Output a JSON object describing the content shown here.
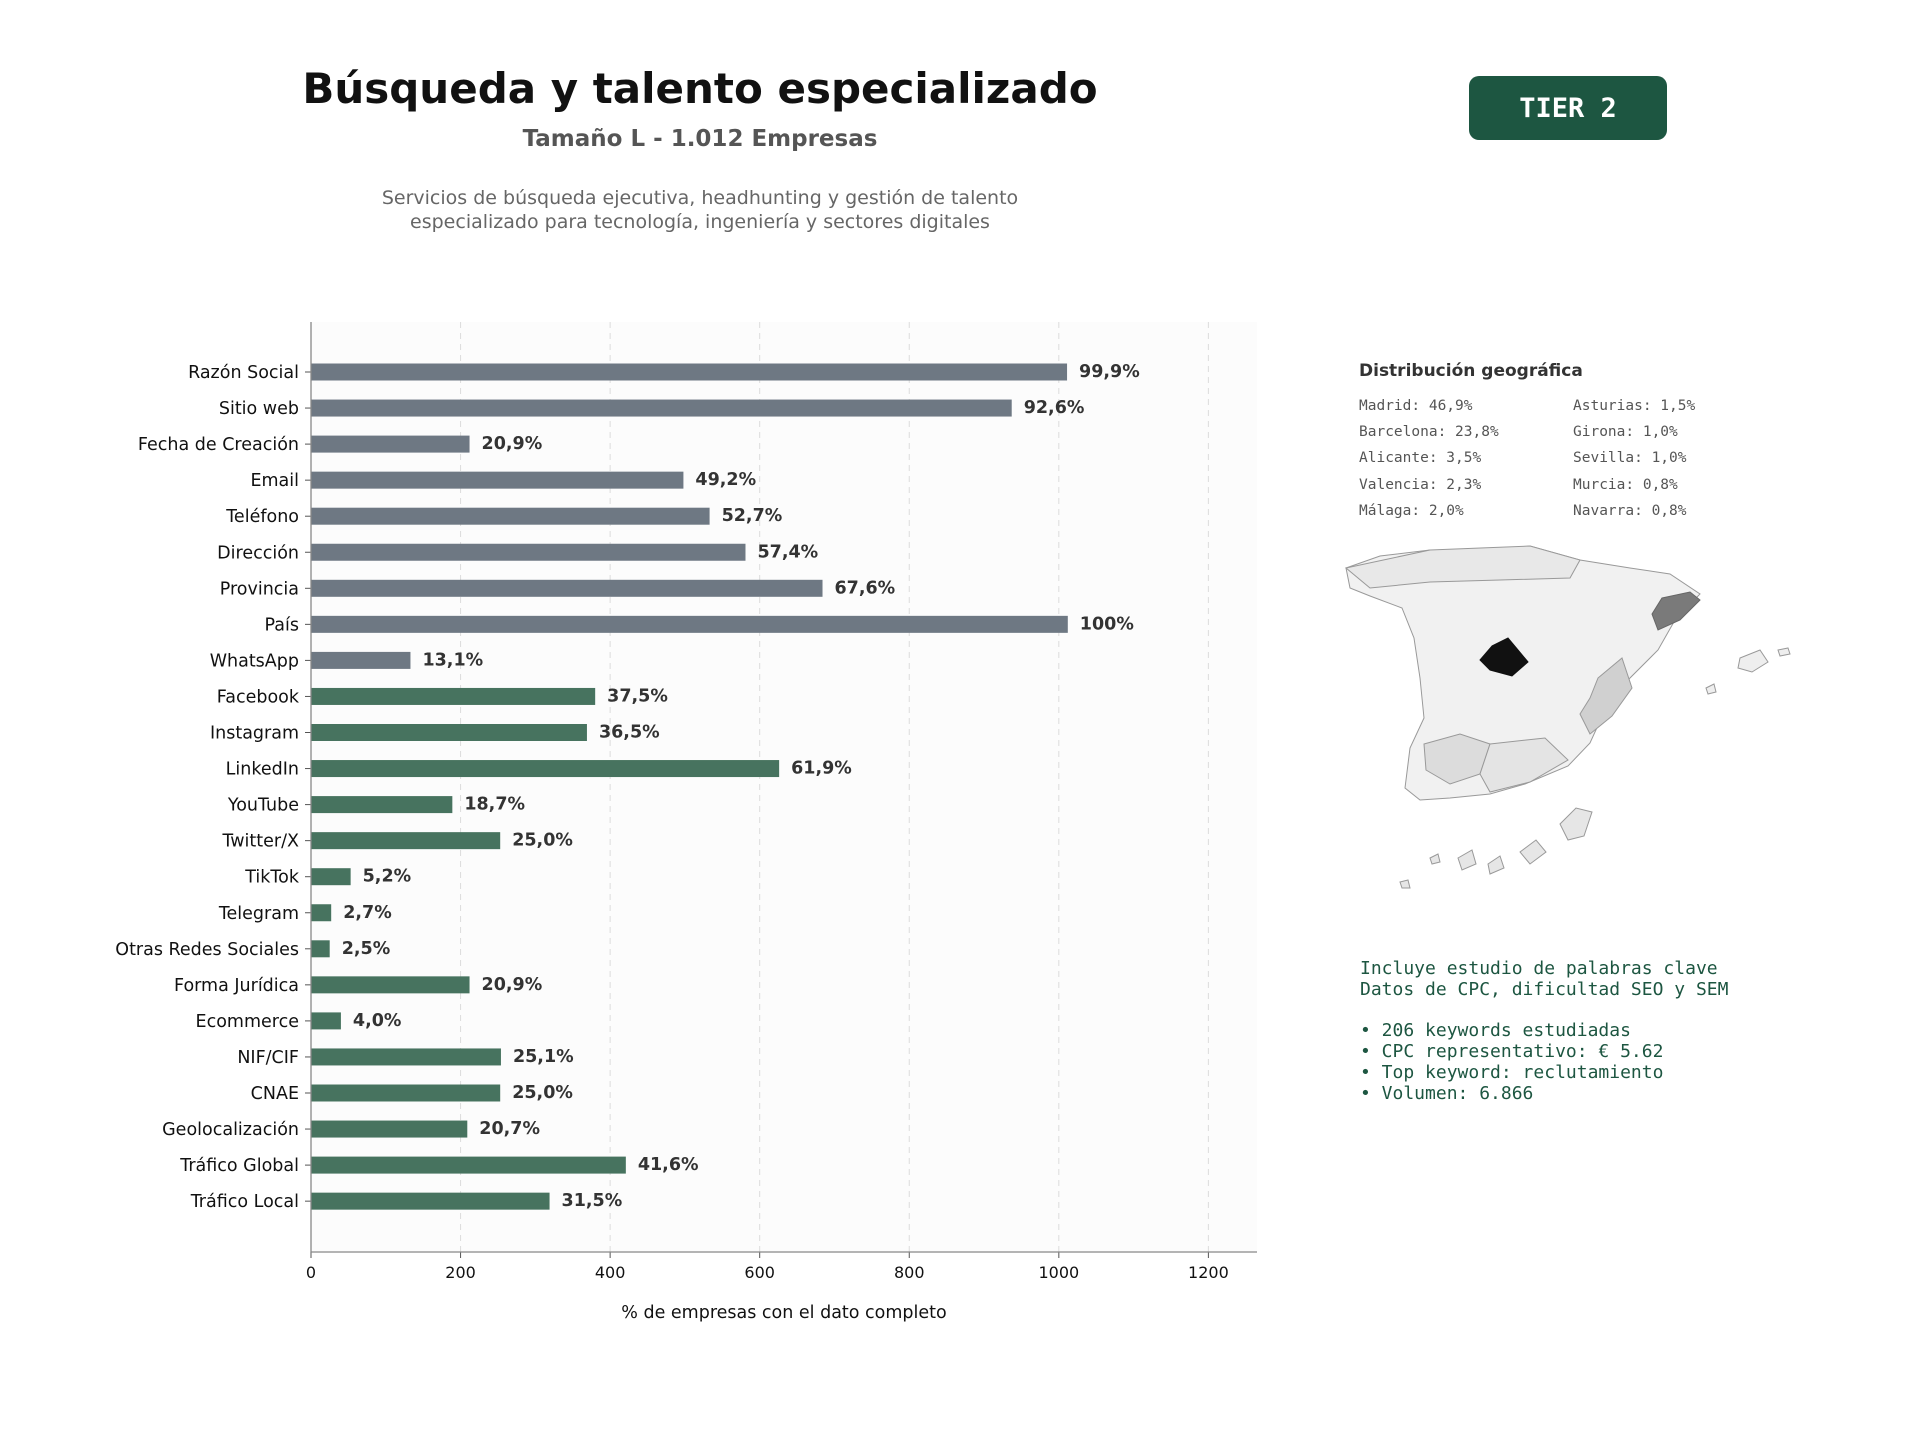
{
  "header": {
    "title": "Búsqueda y talento especializado",
    "subtitle": "Tamaño L - 1.012 Empresas",
    "description_line1": "Servicios de búsqueda ejecutiva, headhunting y gestión de talento",
    "description_line2": "especializado para tecnología, ingeniería y sectores digitales",
    "tier_badge": "TIER 2"
  },
  "colors": {
    "gray_bar": "#6e7883",
    "green_bar": "#47735f",
    "accent": "#1d5641"
  },
  "chart_data": {
    "type": "bar",
    "orientation": "horizontal",
    "categories": [
      "Razón Social",
      "Sitio web",
      "Fecha de Creación",
      "Email",
      "Teléfono",
      "Dirección",
      "Provincia",
      "País",
      "WhatsApp",
      "Facebook",
      "Instagram",
      "LinkedIn",
      "YouTube",
      "Twitter/X",
      "TikTok",
      "Telegram",
      "Otras Redes Sociales",
      "Forma Jurídica",
      "Ecommerce",
      "NIF/CIF",
      "CNAE",
      "Geolocalización",
      "Tráfico Global",
      "Tráfico Local"
    ],
    "values": [
      1011,
      937,
      212,
      498,
      533,
      581,
      684,
      1012,
      133,
      380,
      369,
      626,
      189,
      253,
      53,
      27,
      25,
      212,
      40,
      254,
      253,
      209,
      421,
      319
    ],
    "labels": [
      "99,9%",
      "92,6%",
      "20,9%",
      "49,2%",
      "52,7%",
      "57,4%",
      "67,6%",
      "100%",
      "13,1%",
      "37,5%",
      "36,5%",
      "61,9%",
      "18,7%",
      "25,0%",
      "5,2%",
      "2,7%",
      "2,5%",
      "20,9%",
      "4,0%",
      "25,1%",
      "25,0%",
      "20,7%",
      "41,6%",
      "31,5%"
    ],
    "groups": [
      "gray",
      "gray",
      "gray",
      "gray",
      "gray",
      "gray",
      "gray",
      "gray",
      "gray",
      "green",
      "green",
      "green",
      "green",
      "green",
      "green",
      "green",
      "green",
      "green",
      "green",
      "green",
      "green",
      "green",
      "green",
      "green"
    ],
    "xticks": [
      "0",
      "200",
      "400",
      "600",
      "800",
      "1000",
      "1200"
    ],
    "xlim": [
      0,
      1265
    ],
    "xlabel": "% de empresas con el dato completo",
    "ylabel": "",
    "title": "",
    "grid": "vertical dashed"
  },
  "geo": {
    "title": "Distribución geográfica",
    "left_column": [
      "Madrid: 46,9%",
      "Barcelona: 23,8%",
      "Alicante: 3,5%",
      "Valencia: 2,3%",
      "Málaga: 2,0%"
    ],
    "right_column": [
      "Asturias: 1,5%",
      "Girona: 1,0%",
      "Sevilla: 1,0%",
      "Murcia: 0,8%",
      "Navarra: 0,8%"
    ]
  },
  "keywords": {
    "line1": "Incluye estudio de palabras clave",
    "line2": "Datos de CPC, dificultad SEO y SEM",
    "bullets": [
      "• 206 keywords estudiadas",
      "• CPC representativo: € 5.62",
      "• Top keyword: reclutamiento",
      "• Volumen: 6.866"
    ]
  }
}
